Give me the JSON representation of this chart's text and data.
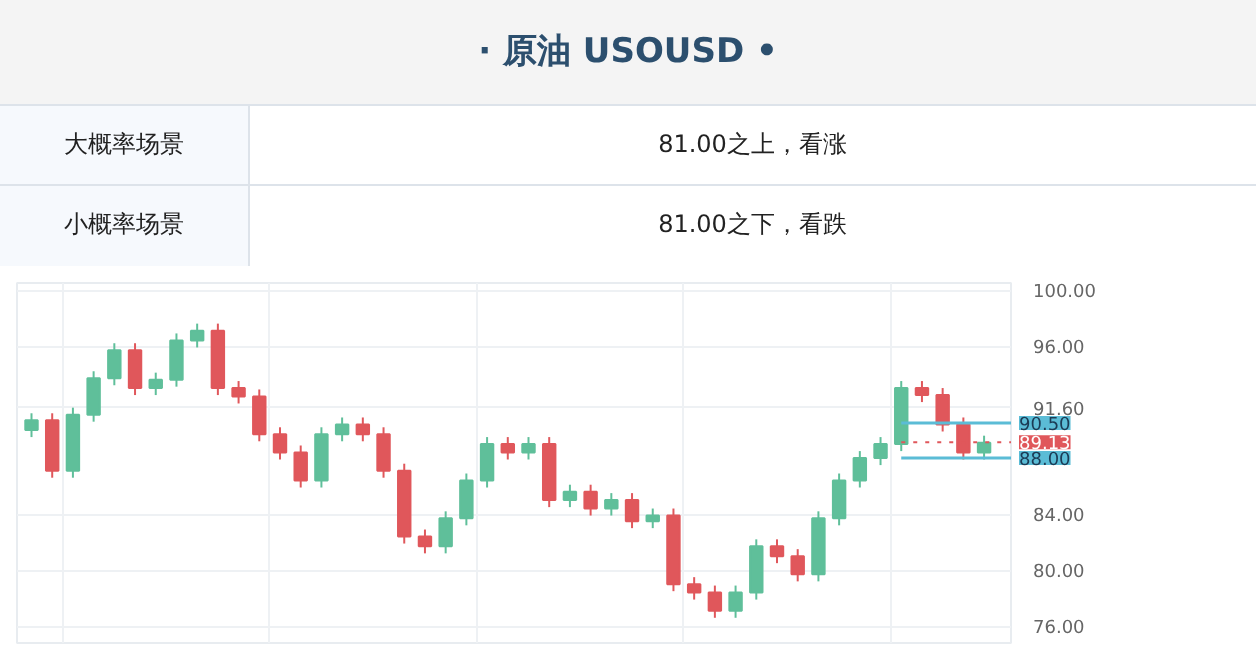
{
  "chart_data": {
    "type": "candlestick",
    "title": "· 原油  USOUSD •",
    "annotations": [
      "大概率场景",
      "81.00之上，看涨",
      "小概率场景",
      "81.00之下，看跌"
    ],
    "categories": [
      null,
      null,
      null,
      null,
      null,
      null,
      null,
      null,
      null,
      null,
      null,
      null,
      null,
      null,
      null,
      null,
      null,
      null,
      null,
      null,
      null,
      null,
      null,
      null,
      null,
      null,
      null,
      null,
      null,
      null,
      null,
      null,
      null,
      null,
      null,
      null,
      null,
      null,
      null,
      null,
      null,
      null,
      null,
      null,
      null,
      null,
      null
    ],
    "ohlc": [
      [
        90.0,
        91.2,
        89.5,
        90.7
      ],
      [
        90.7,
        91.2,
        86.6,
        87.1
      ],
      [
        87.1,
        91.6,
        86.6,
        91.1
      ],
      [
        91.1,
        94.2,
        90.6,
        93.7
      ],
      [
        93.7,
        96.2,
        93.2,
        95.7
      ],
      [
        95.7,
        96.2,
        92.5,
        93.0
      ],
      [
        93.0,
        94.1,
        92.5,
        93.6
      ],
      [
        93.6,
        96.9,
        93.1,
        96.4
      ],
      [
        96.4,
        97.6,
        95.9,
        97.1
      ],
      [
        97.1,
        97.6,
        92.5,
        93.0
      ],
      [
        93.0,
        93.5,
        91.9,
        92.4
      ],
      [
        92.4,
        92.9,
        89.2,
        89.7
      ],
      [
        89.7,
        90.2,
        87.9,
        88.4
      ],
      [
        88.4,
        88.9,
        85.9,
        86.4
      ],
      [
        86.4,
        90.2,
        85.9,
        89.7
      ],
      [
        89.7,
        90.9,
        89.2,
        90.4
      ],
      [
        90.4,
        90.9,
        89.2,
        89.7
      ],
      [
        89.7,
        90.2,
        86.6,
        87.1
      ],
      [
        87.1,
        87.6,
        81.9,
        82.4
      ],
      [
        82.4,
        82.9,
        81.2,
        81.7
      ],
      [
        81.7,
        84.2,
        81.2,
        83.7
      ],
      [
        83.7,
        86.9,
        83.2,
        86.4
      ],
      [
        86.4,
        89.5,
        85.9,
        89.0
      ],
      [
        89.0,
        89.5,
        87.9,
        88.4
      ],
      [
        88.4,
        89.5,
        87.9,
        89.0
      ],
      [
        89.0,
        89.5,
        84.5,
        85.0
      ],
      [
        85.0,
        86.1,
        84.5,
        85.6
      ],
      [
        85.6,
        86.1,
        83.9,
        84.4
      ],
      [
        84.4,
        85.5,
        83.9,
        85.0
      ],
      [
        85.0,
        85.5,
        83.0,
        83.5
      ],
      [
        83.5,
        84.4,
        83.0,
        83.9
      ],
      [
        83.9,
        84.4,
        78.5,
        79.0
      ],
      [
        79.0,
        79.5,
        77.9,
        78.4
      ],
      [
        78.4,
        78.9,
        76.6,
        77.1
      ],
      [
        77.1,
        78.9,
        76.6,
        78.4
      ],
      [
        78.4,
        82.2,
        77.9,
        81.7
      ],
      [
        81.7,
        82.2,
        80.5,
        81.0
      ],
      [
        81.0,
        81.5,
        79.2,
        79.7
      ],
      [
        79.7,
        84.2,
        79.2,
        83.7
      ],
      [
        83.7,
        86.9,
        83.2,
        86.4
      ],
      [
        86.4,
        88.5,
        85.9,
        88.0
      ],
      [
        88.0,
        89.5,
        87.5,
        89.0
      ],
      [
        89.0,
        93.5,
        88.5,
        93.0
      ],
      [
        93.0,
        93.5,
        92.0,
        92.5
      ],
      [
        92.5,
        93.0,
        89.9,
        90.4
      ],
      [
        90.4,
        90.9,
        87.9,
        88.4
      ],
      [
        88.4,
        89.6,
        87.9,
        89.1
      ]
    ],
    "colors": [
      "#5fbf9a",
      "#e0575b",
      "#5fbf9a",
      "#5fbf9a",
      "#5fbf9a",
      "#e0575b",
      "#5fbf9a",
      "#5fbf9a",
      "#5fbf9a",
      "#e0575b",
      "#e0575b",
      "#e0575b",
      "#e0575b",
      "#e0575b",
      "#5fbf9a",
      "#5fbf9a",
      "#e0575b",
      "#e0575b",
      "#e0575b",
      "#e0575b",
      "#5fbf9a",
      "#5fbf9a",
      "#5fbf9a",
      "#e0575b",
      "#5fbf9a",
      "#e0575b",
      "#5fbf9a",
      "#e0575b",
      "#5fbf9a",
      "#e0575b",
      "#5fbf9a",
      "#e0575b",
      "#e0575b",
      "#e0575b",
      "#5fbf9a",
      "#5fbf9a",
      "#e0575b",
      "#e0575b",
      "#5fbf9a",
      "#5fbf9a",
      "#5fbf9a",
      "#5fbf9a",
      "#5fbf9a",
      "#e0575b",
      "#e0575b",
      "#e0575b",
      "#5fbf9a"
    ],
    "ylim": [
      74.8,
      100.5
    ],
    "yticks": [
      {
        "value": 76,
        "label": "76.00"
      },
      {
        "value": 80,
        "label": "80.00"
      },
      {
        "value": 84,
        "label": "84.00"
      },
      {
        "value": 91.6,
        "label": "91.60"
      },
      {
        "value": 96,
        "label": "96.00"
      },
      {
        "value": 100,
        "label": "100.00"
      }
    ],
    "ref_lines": [
      {
        "axis": "y",
        "value": 90.5,
        "label": "90.50",
        "color": "#5bbcd6",
        "line_style": "solid"
      },
      {
        "axis": "y",
        "value": 89.13,
        "label": "89.13",
        "color": "#e0575b",
        "line_style": "dotted"
      },
      {
        "axis": "y",
        "value": 88.0,
        "label": "88.00",
        "color": "#5bbcd6",
        "line_style": "solid"
      }
    ],
    "grid": true,
    "tick_labels": "y"
  }
}
